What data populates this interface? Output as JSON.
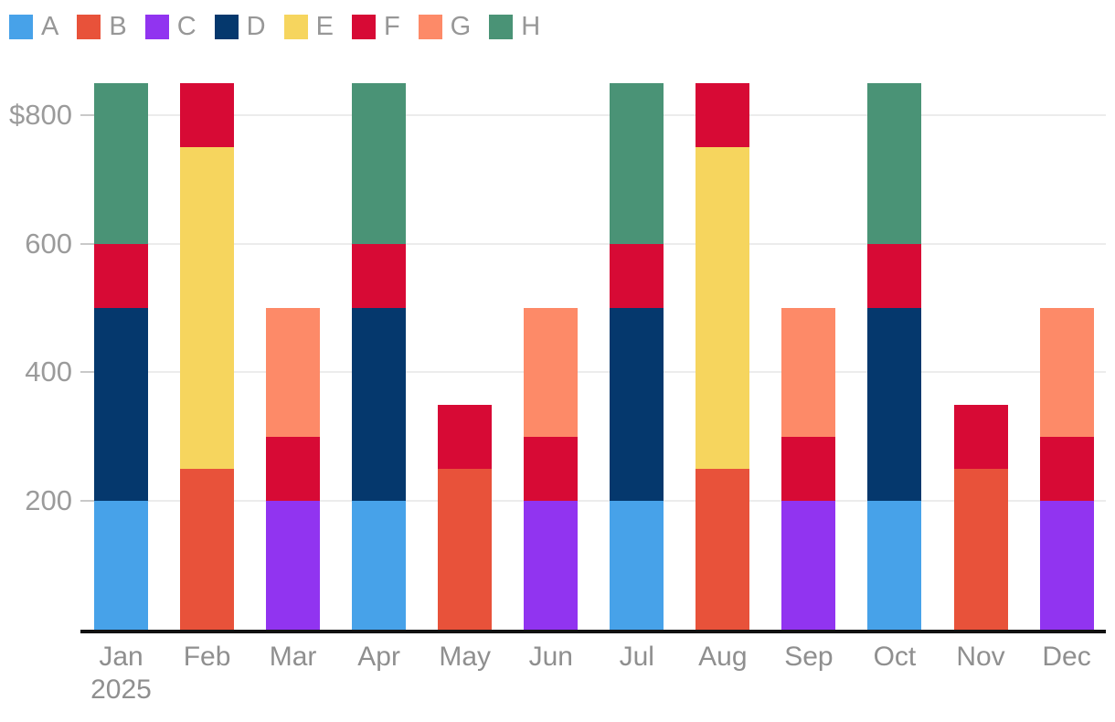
{
  "legend": {
    "items": [
      {
        "label": "A",
        "color": "#47a2e9"
      },
      {
        "label": "B",
        "color": "#e8523a"
      },
      {
        "label": "C",
        "color": "#9134f0"
      },
      {
        "label": "D",
        "color": "#05386d"
      },
      {
        "label": "E",
        "color": "#f6d55e"
      },
      {
        "label": "F",
        "color": "#d70a35"
      },
      {
        "label": "G",
        "color": "#fd8a68"
      },
      {
        "label": "H",
        "color": "#4a9376"
      }
    ]
  },
  "chart_data": {
    "type": "bar",
    "stacked": true,
    "title": "",
    "xlabel": "",
    "ylabel": "",
    "ylim": [
      0,
      850
    ],
    "grid": true,
    "legend_position": "top-left",
    "x_ticks": [
      {
        "label": "Jan",
        "sub": "2025"
      },
      {
        "label": "Feb"
      },
      {
        "label": "Mar"
      },
      {
        "label": "Apr"
      },
      {
        "label": "May"
      },
      {
        "label": "Jun"
      },
      {
        "label": "Jul"
      },
      {
        "label": "Aug"
      },
      {
        "label": "Sep"
      },
      {
        "label": "Oct"
      },
      {
        "label": "Nov"
      },
      {
        "label": "Dec"
      }
    ],
    "y_ticks": [
      {
        "value": 200,
        "label": "200"
      },
      {
        "value": 400,
        "label": "400"
      },
      {
        "value": 600,
        "label": "600"
      },
      {
        "value": 800,
        "label": "$800"
      }
    ],
    "series": [
      {
        "name": "A",
        "color": "#47a2e9",
        "values": [
          200,
          0,
          0,
          200,
          0,
          0,
          200,
          0,
          0,
          200,
          0,
          0
        ]
      },
      {
        "name": "B",
        "color": "#e8523a",
        "values": [
          0,
          250,
          0,
          0,
          250,
          0,
          0,
          250,
          0,
          0,
          250,
          0
        ]
      },
      {
        "name": "C",
        "color": "#9134f0",
        "values": [
          0,
          0,
          200,
          0,
          0,
          200,
          0,
          0,
          200,
          0,
          0,
          200
        ]
      },
      {
        "name": "D",
        "color": "#05386d",
        "values": [
          300,
          0,
          0,
          300,
          0,
          0,
          300,
          0,
          0,
          300,
          0,
          0
        ]
      },
      {
        "name": "E",
        "color": "#f6d55e",
        "values": [
          0,
          500,
          0,
          0,
          0,
          0,
          0,
          500,
          0,
          0,
          0,
          0
        ]
      },
      {
        "name": "F",
        "color": "#d70a35",
        "values": [
          100,
          100,
          100,
          100,
          100,
          100,
          100,
          100,
          100,
          100,
          100,
          100
        ]
      },
      {
        "name": "G",
        "color": "#fd8a68",
        "values": [
          0,
          0,
          200,
          0,
          0,
          200,
          0,
          0,
          200,
          0,
          0,
          200
        ]
      },
      {
        "name": "H",
        "color": "#4a9376",
        "values": [
          250,
          0,
          0,
          250,
          0,
          0,
          250,
          0,
          0,
          250,
          0,
          0
        ]
      }
    ],
    "totals": [
      850,
      850,
      500,
      850,
      350,
      500,
      850,
      850,
      500,
      850,
      350,
      500
    ]
  },
  "colors": {
    "background": "#ffffff",
    "gridline": "#ececec",
    "tick": "#c9c9c9",
    "axis_line": "#111111",
    "axis_text": "#9b9b9b",
    "legend_text": "#979797"
  }
}
